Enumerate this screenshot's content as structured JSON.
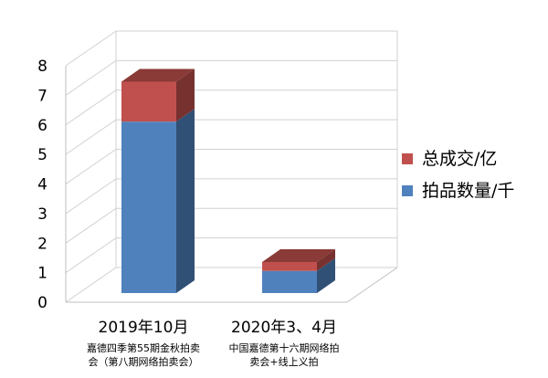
{
  "chart_data": {
    "type": "bar",
    "stacked": true,
    "three_d": true,
    "categories": [
      "2019年10月",
      "2020年3、4月"
    ],
    "category_subtitles": [
      [
        "嘉德四季第55期金秋拍卖",
        "会（第八期网络拍卖会）"
      ],
      [
        "中国嘉德第十六期网络拍",
        "卖会+线上义拍"
      ]
    ],
    "series": [
      {
        "name": "拍品数量/千",
        "color": "#4f81bd",
        "values": [
          5.8,
          0.75
        ]
      },
      {
        "name": "总成交/亿",
        "color": "#c0504d",
        "values": [
          1.35,
          0.3
        ]
      }
    ],
    "ylim": [
      0,
      8
    ],
    "yticks": [
      0,
      1,
      2,
      3,
      4,
      5,
      6,
      7,
      8
    ],
    "grid": true,
    "legend": "right"
  }
}
